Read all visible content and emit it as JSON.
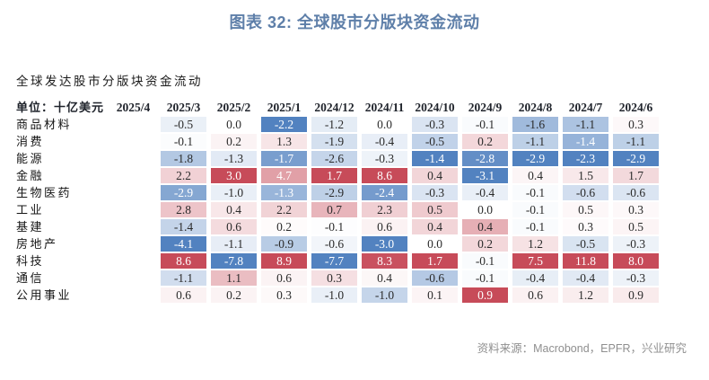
{
  "title": "图表 32: 全球股市分版块资金流动",
  "subtitle": "全球发达股市分版块资金流动",
  "unit_label": "单位：十亿美元",
  "source": "资料来源：Macrobond，EPFR，兴业研究",
  "colors": {
    "title_text": "#5E7FA9",
    "header_text": "#20242C",
    "value_text": "#2B2B2B",
    "source_text": "#8F8F8F",
    "scale_positive_max": "#C74B59",
    "scale_negative_max": "#5282C0",
    "scale_midpoint": "#FFFFFF"
  },
  "chart_data": {
    "type": "heatmap",
    "title": "全球发达股市分版块资金流动",
    "unit": "十亿美元",
    "columns": [
      "2025/4",
      "2025/3",
      "2025/2",
      "2025/1",
      "2024/12",
      "2024/11",
      "2024/10",
      "2024/9",
      "2024/8",
      "2024/7",
      "2024/6"
    ],
    "rows": [
      "商品材料",
      "消费",
      "能源",
      "金融",
      "生物医药",
      "工业",
      "基建",
      "房地产",
      "科技",
      "通信",
      "公用事业"
    ],
    "values": [
      [
        null,
        -0.5,
        0.0,
        -2.2,
        -1.2,
        0.0,
        -0.3,
        -0.1,
        -1.6,
        -1.1,
        0.3
      ],
      [
        null,
        -0.1,
        0.2,
        1.3,
        -1.9,
        -0.4,
        -0.5,
        0.2,
        -1.1,
        -1.4,
        -1.1
      ],
      [
        null,
        -1.8,
        -1.3,
        -1.7,
        -2.6,
        -0.3,
        -1.4,
        -2.8,
        -2.9,
        -2.3,
        -2.9
      ],
      [
        null,
        2.2,
        3.0,
        4.7,
        1.7,
        8.6,
        0.4,
        -3.1,
        0.4,
        1.5,
        1.7
      ],
      [
        null,
        -2.9,
        -1.0,
        -1.3,
        -2.9,
        -2.4,
        -0.3,
        -0.4,
        -0.1,
        -0.6,
        -0.6
      ],
      [
        null,
        2.8,
        0.4,
        2.2,
        0.7,
        2.3,
        0.5,
        0.0,
        -0.1,
        0.5,
        0.3
      ],
      [
        null,
        -1.4,
        0.6,
        0.2,
        -0.1,
        0.6,
        0.4,
        0.4,
        -0.1,
        0.3,
        0.5
      ],
      [
        null,
        -4.1,
        -1.1,
        -0.9,
        -0.6,
        -3.0,
        0.0,
        0.2,
        1.2,
        -0.5,
        -0.3
      ],
      [
        null,
        8.6,
        -7.8,
        8.9,
        -7.7,
        8.3,
        1.7,
        -0.1,
        7.5,
        11.8,
        8.0
      ],
      [
        null,
        -1.1,
        1.1,
        0.6,
        0.3,
        0.4,
        -0.6,
        -0.1,
        -0.4,
        -0.4,
        -0.3
      ],
      [
        null,
        0.6,
        0.2,
        0.3,
        -1.0,
        -1.0,
        0.1,
        0.9,
        0.6,
        1.2,
        0.9
      ]
    ],
    "color_scale": "per-column 3-color scale: column min → blue, 0 → white, column max → red",
    "legend_position": "none",
    "grid": false
  }
}
